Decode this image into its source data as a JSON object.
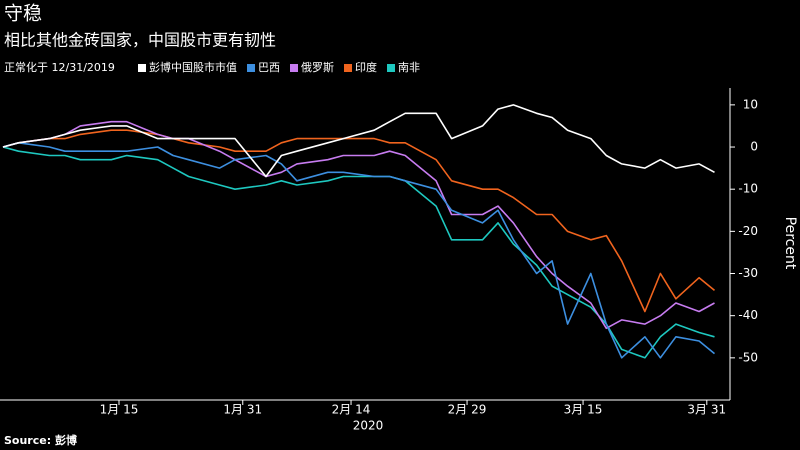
{
  "chart_data": {
    "type": "line",
    "title": "守稳",
    "subtitle": "相比其他金砖国家，中国股市更有韧性",
    "legend_note": "正常化于 12/31/2019",
    "source": "Source: 彭博",
    "x_label": "2020",
    "y_label": "Percent",
    "x": [
      "2019-12-31",
      "2020-01-02",
      "2020-01-06",
      "2020-01-08",
      "2020-01-10",
      "2020-01-14",
      "2020-01-16",
      "2020-01-20",
      "2020-01-22",
      "2020-01-24",
      "2020-01-28",
      "2020-01-30",
      "2020-02-03",
      "2020-02-05",
      "2020-02-07",
      "2020-02-11",
      "2020-02-13",
      "2020-02-17",
      "2020-02-19",
      "2020-02-21",
      "2020-02-25",
      "2020-02-27",
      "2020-03-02",
      "2020-03-04",
      "2020-03-06",
      "2020-03-09",
      "2020-03-11",
      "2020-03-13",
      "2020-03-16",
      "2020-03-18",
      "2020-03-20",
      "2020-03-23",
      "2020-03-25",
      "2020-03-27",
      "2020-03-30",
      "2020-04-01"
    ],
    "xlim": [
      "2019-12-31",
      "2020-04-03"
    ],
    "xticks": [
      {
        "value": "2020-01-15",
        "label": "1月 15"
      },
      {
        "value": "2020-01-31",
        "label": "1月 31"
      },
      {
        "value": "2020-02-14",
        "label": "2月 14"
      },
      {
        "value": "2020-02-29",
        "label": "2月 29"
      },
      {
        "value": "2020-03-15",
        "label": "3月 15"
      },
      {
        "value": "2020-03-31",
        "label": "3月 31"
      }
    ],
    "ylim": [
      -60,
      14
    ],
    "yticks": [
      10,
      0,
      -10,
      -20,
      -30,
      -40,
      -50
    ],
    "grid": false,
    "series": [
      {
        "name": "彭博中国股市市值",
        "color": "#ffffff",
        "values": [
          0,
          1,
          2,
          3,
          4,
          5,
          5,
          2,
          2,
          2,
          2,
          2,
          -7,
          -2,
          -1,
          1,
          2,
          4,
          6,
          8,
          8,
          2,
          5,
          9,
          10,
          8,
          7,
          4,
          2,
          -2,
          -4,
          -5,
          -3,
          -5,
          -4,
          -6
        ]
      },
      {
        "name": "巴西",
        "color": "#3d8fe0",
        "values": [
          0,
          1,
          0,
          -1,
          -1,
          -1,
          -1,
          0,
          -2,
          -3,
          -5,
          -3,
          -2,
          -4,
          -8,
          -6,
          -6,
          -7,
          -7,
          -8,
          -10,
          -15,
          -18,
          -15,
          -22,
          -30,
          -27,
          -42,
          -30,
          -42,
          -50,
          -45,
          -50,
          -45,
          -46,
          -49
        ]
      },
      {
        "name": "俄罗斯",
        "color": "#c77cf0",
        "values": [
          0,
          1,
          2,
          3,
          5,
          6,
          6,
          3,
          2,
          2,
          -1,
          -3,
          -7,
          -6,
          -4,
          -3,
          -2,
          -2,
          -1,
          -2,
          -8,
          -16,
          -16,
          -14,
          -18,
          -26,
          -30,
          -33,
          -37,
          -43,
          -41,
          -42,
          -40,
          -37,
          -39,
          -37
        ]
      },
      {
        "name": "印度",
        "color": "#f0641e",
        "values": [
          0,
          1,
          2,
          2,
          3,
          4,
          4,
          3,
          2,
          1,
          0,
          -1,
          -1,
          1,
          2,
          2,
          2,
          2,
          1,
          1,
          -3,
          -8,
          -10,
          -10,
          -12,
          -16,
          -16,
          -20,
          -22,
          -21,
          -27,
          -39,
          -30,
          -36,
          -31,
          -34
        ]
      },
      {
        "name": "南非",
        "color": "#1ec8c0",
        "values": [
          0,
          -1,
          -2,
          -2,
          -3,
          -3,
          -2,
          -3,
          -5,
          -7,
          -9,
          -10,
          -9,
          -8,
          -9,
          -8,
          -7,
          -7,
          -7,
          -8,
          -14,
          -22,
          -22,
          -18,
          -23,
          -28,
          -33,
          -35,
          -38,
          -42,
          -48,
          -50,
          -45,
          -42,
          -44,
          -45
        ]
      }
    ]
  }
}
